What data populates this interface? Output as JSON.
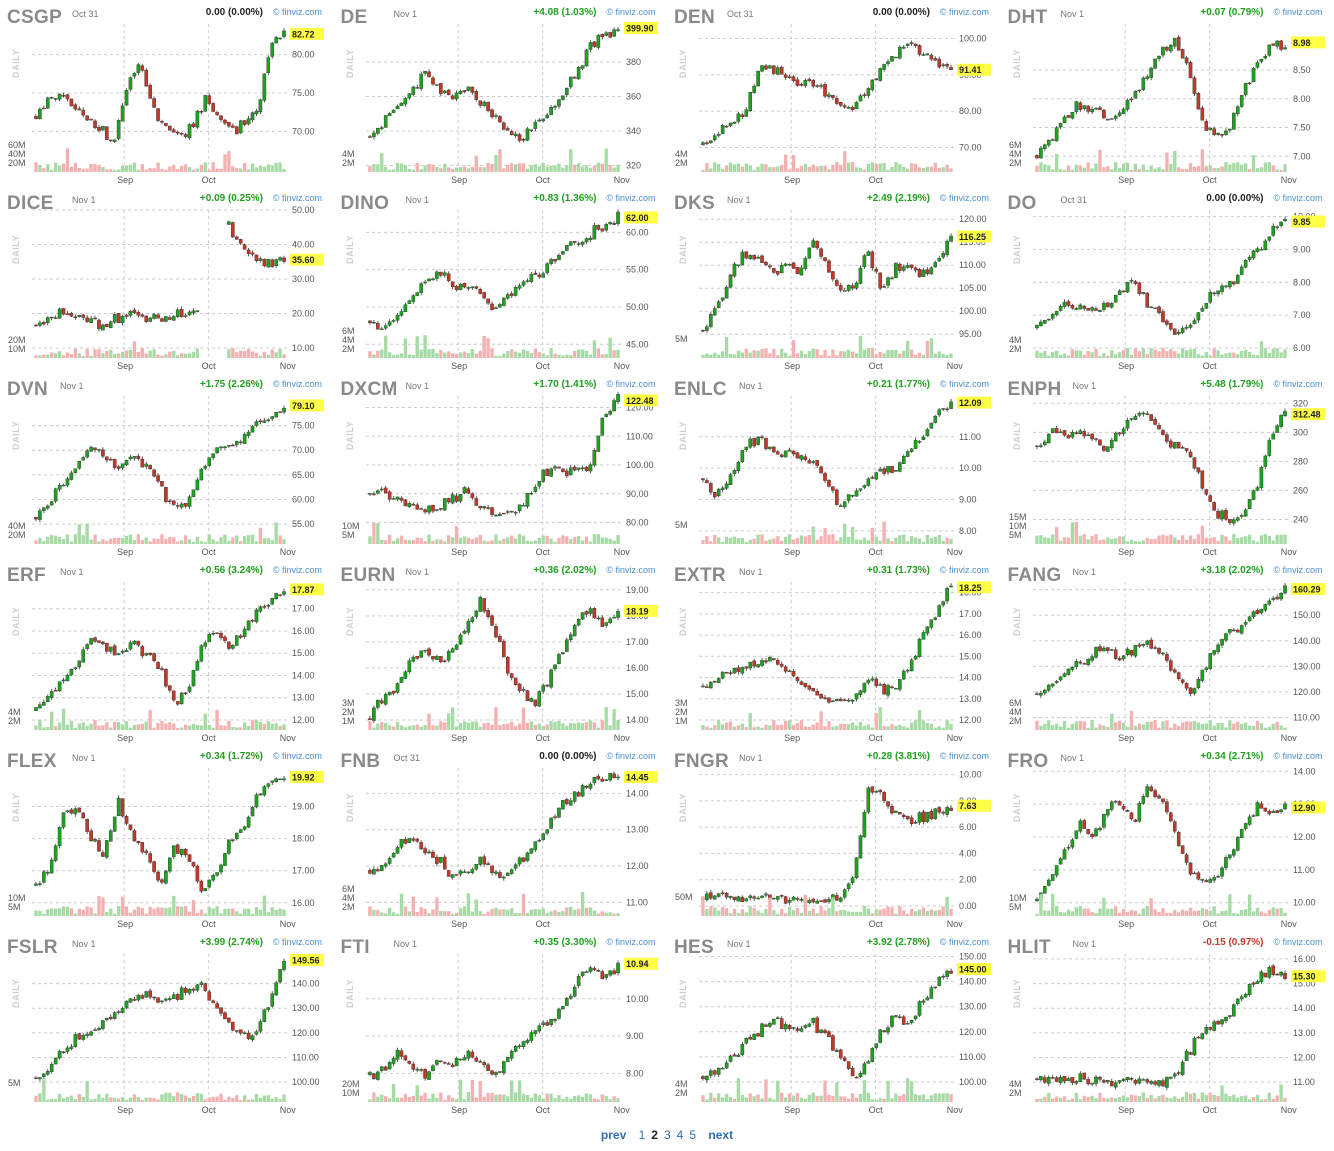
{
  "colors": {
    "up": "#1ea11e",
    "down": "#c0392b",
    "flat": "#222222",
    "last_bg": "#ffff44",
    "vol_up": "#a6dba6",
    "vol_down": "#f4b1b1",
    "grid": "#cccccc",
    "credit": "#4b8fd1"
  },
  "watermark": "DAILY",
  "credit_text": "© finviz.com",
  "charts": [
    {
      "ticker": "CSGP",
      "date": "Oct 31",
      "change": "0.00 (0.00%)",
      "dir": "flat",
      "last": "82.72",
      "y_ticks": [
        "80.00",
        "75.00",
        "70.00"
      ],
      "vol_ticks": [
        "60M",
        "40M",
        "20M"
      ],
      "x_ticks": [
        "Sep",
        "Oct"
      ],
      "path": [
        72,
        74,
        75,
        73,
        71,
        70,
        69,
        76,
        79,
        73,
        70,
        69,
        71,
        74,
        72,
        70,
        71,
        73,
        81,
        82.7
      ],
      "ylim": [
        66,
        84
      ]
    },
    {
      "ticker": "DE",
      "date": "Nov 1",
      "change": "+4.08 (1.03%)",
      "dir": "up",
      "last": "399.90",
      "y_ticks": [
        "380",
        "360",
        "340",
        "320"
      ],
      "vol_ticks": [
        "4M",
        "2M"
      ],
      "x_ticks": [
        "Sep",
        "Oct",
        "Nov"
      ],
      "path": [
        338,
        345,
        355,
        362,
        375,
        365,
        360,
        365,
        355,
        350,
        340,
        335,
        345,
        350,
        360,
        375,
        390,
        395,
        399.9
      ],
      "ylim": [
        322,
        402
      ]
    },
    {
      "ticker": "DEN",
      "date": "Oct 31",
      "change": "0.00 (0.00%)",
      "dir": "flat",
      "last": "91.41",
      "y_ticks": [
        "100.00",
        "90.00",
        "80.00",
        "70.00"
      ],
      "vol_ticks": [
        "4M",
        "2M"
      ],
      "x_ticks": [
        "Sep",
        "Oct"
      ],
      "path": [
        70,
        73,
        77,
        80,
        91,
        92,
        89,
        87,
        88,
        85,
        82,
        80,
        87,
        92,
        95,
        99,
        96,
        94,
        91.4
      ],
      "ylim": [
        66,
        104
      ]
    },
    {
      "ticker": "DHT",
      "date": "Nov 1",
      "change": "+0.07 (0.79%)",
      "dir": "up",
      "last": "8.98",
      "y_ticks": [
        "8.50",
        "8.00",
        "7.50",
        "7.00"
      ],
      "vol_ticks": [
        "6M",
        "4M",
        "2M"
      ],
      "x_ticks": [
        "Sep",
        "Oct",
        "Nov"
      ],
      "path": [
        7.0,
        7.3,
        7.7,
        7.9,
        7.8,
        7.7,
        7.8,
        8.0,
        8.4,
        8.9,
        9.0,
        8.5,
        7.6,
        7.4,
        7.5,
        8.2,
        8.6,
        8.9,
        8.98
      ],
      "ylim": [
        6.9,
        9.3
      ]
    },
    {
      "ticker": "DICE",
      "date": "Nov 1",
      "change": "+0.09 (0.25%)",
      "dir": "up",
      "last": "35.60",
      "y_ticks": [
        "50.00",
        "40.00",
        "30.00",
        "20.00",
        "10.00"
      ],
      "vol_ticks": [
        "20M",
        "10M"
      ],
      "x_ticks": [
        "Sep",
        "Oct",
        "Nov"
      ],
      "path": [
        17,
        19,
        20,
        19,
        18,
        17,
        19,
        20,
        19,
        18,
        19,
        20,
        22,
        null,
        45,
        40,
        36,
        35,
        35.6
      ],
      "ylim": [
        10,
        50
      ]
    },
    {
      "ticker": "DINO",
      "date": "Nov 1",
      "change": "+0.83 (1.36%)",
      "dir": "up",
      "last": "62.00",
      "y_ticks": [
        "60.00",
        "55.00",
        "50.00",
        "45.00"
      ],
      "vol_ticks": [
        "6M",
        "4M",
        "2M"
      ],
      "x_ticks": [
        "Sep",
        "Oct",
        "Nov"
      ],
      "path": [
        48,
        47,
        49,
        51,
        53,
        55,
        53,
        53,
        52,
        49,
        51,
        53,
        54,
        56,
        57,
        59,
        60,
        61,
        62
      ],
      "ylim": [
        44.5,
        63
      ]
    },
    {
      "ticker": "DKS",
      "date": "Nov 1",
      "change": "+2.49 (2.19%)",
      "dir": "up",
      "last": "116.25",
      "y_ticks": [
        "120.00",
        "115.00",
        "110.00",
        "105.00",
        "100.00",
        "95.00"
      ],
      "vol_ticks": [
        "5M"
      ],
      "x_ticks": [
        "Sep",
        "Oct",
        "Nov"
      ],
      "path": [
        96,
        100,
        108,
        113,
        111,
        109,
        110,
        108,
        115,
        110,
        104,
        106,
        113,
        103,
        110,
        109,
        108,
        111,
        116.25
      ],
      "ylim": [
        92,
        122
      ]
    },
    {
      "ticker": "DO",
      "date": "Oct 31",
      "change": "0.00 (0.00%)",
      "dir": "flat",
      "last": "9.85",
      "y_ticks": [
        "10.00",
        "9.00",
        "8.00",
        "7.00",
        "6.00"
      ],
      "vol_ticks": [
        "4M",
        "2M"
      ],
      "x_ticks": [
        "Sep",
        "Oct"
      ],
      "path": [
        6.7,
        7.0,
        7.2,
        7.3,
        7.1,
        7.3,
        7.6,
        8.1,
        7.3,
        7.0,
        6.4,
        6.7,
        7.3,
        7.8,
        8.0,
        8.5,
        9.0,
        9.5,
        9.85
      ],
      "ylim": [
        6,
        10.2
      ]
    },
    {
      "ticker": "DVN",
      "date": "Nov 1",
      "change": "+1.75 (2.26%)",
      "dir": "up",
      "last": "79.10",
      "y_ticks": [
        "75.00",
        "70.00",
        "65.00",
        "60.00",
        "55.00"
      ],
      "vol_ticks": [
        "40M",
        "20M"
      ],
      "x_ticks": [
        "Sep",
        "Oct",
        "Nov"
      ],
      "path": [
        56,
        60,
        63,
        67,
        71,
        69,
        66,
        70,
        67,
        63,
        58,
        60,
        66,
        70,
        71,
        72,
        75,
        77,
        79.1
      ],
      "ylim": [
        53,
        81
      ]
    },
    {
      "ticker": "DXCM",
      "date": "Nov 1",
      "change": "+1.70 (1.41%)",
      "dir": "up",
      "last": "122.48",
      "y_ticks": [
        "120.00",
        "110.00",
        "100.00",
        "90.00",
        "80.00"
      ],
      "vol_ticks": [
        "10M",
        "5M"
      ],
      "x_ticks": [
        "Sep",
        "Oct",
        "Nov"
      ],
      "path": [
        90,
        91,
        89,
        86,
        84,
        85,
        88,
        91,
        86,
        82,
        83,
        85,
        93,
        99,
        98,
        97,
        100,
        118,
        122.5
      ],
      "ylim": [
        76,
        124
      ]
    },
    {
      "ticker": "ENLC",
      "date": "Nov 1",
      "change": "+0.21 (1.77%)",
      "dir": "up",
      "last": "12.09",
      "y_ticks": [
        "11.00",
        "10.00",
        "9.00",
        "8.00"
      ],
      "vol_ticks": [
        "5M"
      ],
      "x_ticks": [
        "Sep",
        "Oct",
        "Nov"
      ],
      "path": [
        9.6,
        9.2,
        9.8,
        10.6,
        11.0,
        10.6,
        10.5,
        10.3,
        10.2,
        9.5,
        8.8,
        9.2,
        9.6,
        9.9,
        10.0,
        10.6,
        11.1,
        11.7,
        12.09
      ],
      "ylim": [
        7.9,
        12.3
      ]
    },
    {
      "ticker": "ENPH",
      "date": "Nov 1",
      "change": "+5.48 (1.79%)",
      "dir": "up",
      "last": "312.48",
      "y_ticks": [
        "320",
        "300",
        "280",
        "260",
        "240"
      ],
      "vol_ticks": [
        "15M",
        "10M",
        "5M"
      ],
      "x_ticks": [
        "Sep",
        "Oct",
        "Nov"
      ],
      "path": [
        290,
        300,
        298,
        302,
        295,
        290,
        300,
        310,
        315,
        300,
        290,
        285,
        262,
        245,
        240,
        245,
        262,
        300,
        312.5
      ],
      "ylim": [
        230,
        325
      ]
    },
    {
      "ticker": "ERF",
      "date": "Nov 1",
      "change": "+0.56 (3.24%)",
      "dir": "up",
      "last": "17.87",
      "y_ticks": [
        "17.00",
        "16.00",
        "15.00",
        "14.00",
        "13.00",
        "12.00"
      ],
      "vol_ticks": [
        "4M",
        "2M"
      ],
      "x_ticks": [
        "Sep",
        "Oct",
        "Nov"
      ],
      "path": [
        12.5,
        13.2,
        13.8,
        14.5,
        15.6,
        15.2,
        14.9,
        15.4,
        15.0,
        14.2,
        12.8,
        13.4,
        15.2,
        16.0,
        15.4,
        16.0,
        16.8,
        17.3,
        17.87
      ],
      "ylim": [
        12,
        18.2
      ]
    },
    {
      "ticker": "EURN",
      "date": "Nov 1",
      "change": "+0.36 (2.02%)",
      "dir": "up",
      "last": "18.19",
      "y_ticks": [
        "19.00",
        "18.00",
        "17.00",
        "16.00",
        "15.00",
        "14.00"
      ],
      "vol_ticks": [
        "3M",
        "2M",
        "1M"
      ],
      "x_ticks": [
        "Sep",
        "Oct",
        "Nov"
      ],
      "path": [
        14.2,
        14.8,
        15.4,
        16.4,
        16.6,
        16.2,
        16.8,
        17.6,
        18.6,
        17.5,
        15.8,
        15.0,
        14.8,
        15.6,
        16.8,
        17.8,
        18.3,
        17.6,
        18.19
      ],
      "ylim": [
        14,
        19.3
      ]
    },
    {
      "ticker": "EXTR",
      "date": "Nov 1",
      "change": "+0.31 (1.73%)",
      "dir": "up",
      "last": "18.25",
      "y_ticks": [
        "18.00",
        "17.00",
        "16.00",
        "15.00",
        "14.00",
        "13.00",
        "12.00"
      ],
      "vol_ticks": [
        "3M",
        "2M",
        "1M"
      ],
      "x_ticks": [
        "Sep",
        "Oct",
        "Nov"
      ],
      "path": [
        13.5,
        14.0,
        14.2,
        14.4,
        14.8,
        15.0,
        14.2,
        13.8,
        13.4,
        13.0,
        12.7,
        13.2,
        14.0,
        13.4,
        13.8,
        14.6,
        16.0,
        17.2,
        18.25
      ],
      "ylim": [
        12,
        18.5
      ]
    },
    {
      "ticker": "FANG",
      "date": "Nov 1",
      "change": "+3.18 (2.02%)",
      "dir": "up",
      "last": "160.29",
      "y_ticks": [
        "160.00",
        "150.00",
        "140.00",
        "130.00",
        "120.00",
        "110.00"
      ],
      "vol_ticks": [
        "6M",
        "4M",
        "2M"
      ],
      "x_ticks": [
        "Sep",
        "Oct",
        "Nov"
      ],
      "path": [
        118,
        122,
        127,
        131,
        135,
        137,
        133,
        137,
        139,
        135,
        127,
        118,
        128,
        138,
        142,
        146,
        151,
        156,
        160.3
      ],
      "ylim": [
        109,
        163
      ]
    },
    {
      "ticker": "FLEX",
      "date": "Nov 1",
      "change": "+0.34 (1.72%)",
      "dir": "up",
      "last": "19.92",
      "y_ticks": [
        "19.00",
        "18.00",
        "17.00",
        "16.00"
      ],
      "vol_ticks": [
        "10M",
        "5M"
      ],
      "x_ticks": [
        "Sep",
        "Oct",
        "Nov"
      ],
      "path": [
        16.5,
        17.2,
        18.8,
        19.0,
        18.0,
        17.5,
        19.2,
        18.0,
        17.6,
        16.6,
        17.8,
        17.4,
        16.4,
        16.9,
        17.8,
        18.4,
        19.3,
        19.8,
        19.92
      ],
      "ylim": [
        15.9,
        20.2
      ]
    },
    {
      "ticker": "FNB",
      "date": "Oct 31",
      "change": "0.00 (0.00%)",
      "dir": "flat",
      "last": "14.45",
      "y_ticks": [
        "14.00",
        "13.00",
        "12.00",
        "11.00"
      ],
      "vol_ticks": [
        "6M",
        "4M",
        "2M"
      ],
      "x_ticks": [
        "Sep",
        "Oct"
      ],
      "path": [
        11.9,
        12.0,
        12.5,
        12.8,
        12.4,
        12.1,
        11.8,
        11.9,
        12.2,
        11.8,
        11.7,
        12.2,
        12.6,
        13.2,
        13.7,
        14.0,
        14.3,
        14.4,
        14.45
      ],
      "ylim": [
        10.9,
        14.7
      ]
    },
    {
      "ticker": "FNGR",
      "date": "Nov 1",
      "change": "+0.28 (3.81%)",
      "dir": "up",
      "last": "7.63",
      "y_ticks": [
        "10.00",
        "8.00",
        "6.00",
        "4.00",
        "2.00",
        "0.00"
      ],
      "vol_ticks": [
        "50M"
      ],
      "x_ticks": [
        "Oct",
        "Nov"
      ],
      "path": [
        0.8,
        0.75,
        0.7,
        0.68,
        0.65,
        0.6,
        0.55,
        0.5,
        0.45,
        0.4,
        0.5,
        2.5,
        9.0,
        8.2,
        7.0,
        6.5,
        6.8,
        7.2,
        7.63
      ],
      "ylim": [
        0,
        10.5
      ]
    },
    {
      "ticker": "FRO",
      "date": "Nov 1",
      "change": "+0.34 (2.71%)",
      "dir": "up",
      "last": "12.90",
      "y_ticks": [
        "14.00",
        "13.00",
        "12.00",
        "11.00",
        "10.00"
      ],
      "vol_ticks": [
        "10M",
        "5M"
      ],
      "x_ticks": [
        "Sep",
        "Oct",
        "Nov"
      ],
      "path": [
        10.2,
        10.8,
        11.6,
        12.4,
        12.0,
        12.8,
        13.0,
        12.4,
        13.5,
        13.2,
        12.2,
        11.0,
        10.6,
        10.8,
        11.4,
        12.2,
        12.9,
        12.6,
        12.9
      ],
      "ylim": [
        9.9,
        14.1
      ]
    },
    {
      "ticker": "FSLR",
      "date": "Nov 1",
      "change": "+3.99 (2.74%)",
      "dir": "up",
      "last": "149.56",
      "y_ticks": [
        "140.00",
        "130.00",
        "120.00",
        "110.00",
        "100.00"
      ],
      "vol_ticks": [
        "5M"
      ],
      "x_ticks": [
        "Sep",
        "Oct",
        "Nov"
      ],
      "path": [
        100,
        106,
        112,
        118,
        120,
        125,
        130,
        136,
        135,
        133,
        134,
        138,
        140,
        130,
        124,
        118,
        120,
        135,
        149.6
      ],
      "ylim": [
        96,
        152
      ]
    },
    {
      "ticker": "FTI",
      "date": "Nov 1",
      "change": "+0.35 (3.30%)",
      "dir": "up",
      "last": "10.94",
      "y_ticks": [
        "10.00",
        "9.00",
        "8.00"
      ],
      "vol_ticks": [
        "20M",
        "10M"
      ],
      "x_ticks": [
        "Sep",
        "Oct",
        "Nov"
      ],
      "path": [
        7.9,
        8.1,
        8.6,
        8.2,
        8.0,
        8.3,
        8.2,
        8.5,
        8.3,
        8.0,
        8.4,
        8.8,
        9.2,
        9.4,
        9.8,
        10.4,
        10.9,
        10.5,
        10.94
      ],
      "ylim": [
        7.5,
        11.2
      ]
    },
    {
      "ticker": "HES",
      "date": "Nov 1",
      "change": "+3.92 (2.78%)",
      "dir": "up",
      "last": "145.00",
      "y_ticks": [
        "150.00",
        "140.00",
        "130.00",
        "120.00",
        "110.00",
        "100.00"
      ],
      "vol_ticks": [
        "4M",
        "2M"
      ],
      "x_ticks": [
        "Sep",
        "Oct",
        "Nov"
      ],
      "path": [
        102,
        105,
        110,
        115,
        120,
        125,
        122,
        120,
        124,
        117,
        110,
        100,
        110,
        120,
        127,
        124,
        132,
        140,
        145
      ],
      "ylim": [
        96,
        151
      ]
    },
    {
      "ticker": "HLIT",
      "date": "Nov 1",
      "change": "-0.15 (0.97%)",
      "dir": "down",
      "last": "15.30",
      "y_ticks": [
        "16.00",
        "15.00",
        "14.00",
        "13.00",
        "12.00",
        "11.00"
      ],
      "vol_ticks": [
        "4M",
        "2M"
      ],
      "x_ticks": [
        "Sep",
        "Oct",
        "Nov"
      ],
      "path": [
        11.2,
        11.1,
        11.0,
        11.2,
        11.1,
        11.0,
        11.1,
        11.0,
        11.0,
        10.9,
        11.2,
        12.2,
        13.0,
        13.5,
        13.8,
        14.5,
        15.2,
        15.6,
        15.3
      ],
      "ylim": [
        10.6,
        16.2
      ]
    }
  ],
  "pager": {
    "prev": "prev",
    "pages": [
      "1",
      "2",
      "3",
      "4",
      "5"
    ],
    "current": "2",
    "next": "next"
  }
}
